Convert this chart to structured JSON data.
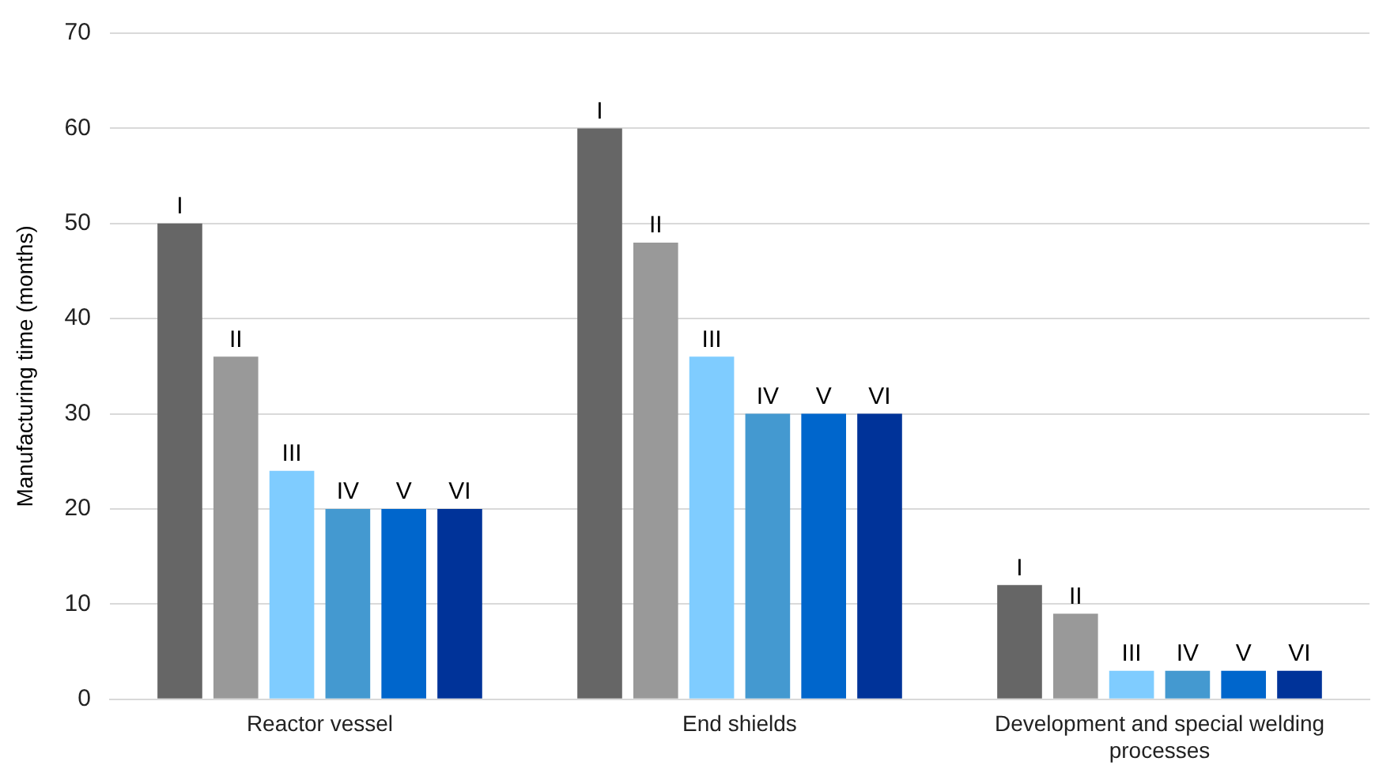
{
  "chart_data": {
    "type": "bar",
    "ylabel": "Manufacturing time (months)",
    "categories": [
      "Reactor vessel",
      "End shields",
      "Development and special welding processes"
    ],
    "series": [
      {
        "name": "I",
        "color": "#666666",
        "values": [
          50,
          60,
          12
        ]
      },
      {
        "name": "II",
        "color": "#999999",
        "values": [
          36,
          48,
          9
        ]
      },
      {
        "name": "III",
        "color": "#7fccff",
        "values": [
          24,
          36,
          3
        ]
      },
      {
        "name": "IV",
        "color": "#4499d0",
        "values": [
          20,
          30,
          3
        ]
      },
      {
        "name": "V",
        "color": "#0066cc",
        "values": [
          20,
          30,
          3
        ]
      },
      {
        "name": "VI",
        "color": "#003399",
        "values": [
          20,
          30,
          3
        ]
      }
    ],
    "ylim": [
      0,
      70
    ],
    "yticks": [
      0,
      10,
      20,
      30,
      40,
      50,
      60,
      70
    ],
    "grid": "y",
    "legend": false
  }
}
